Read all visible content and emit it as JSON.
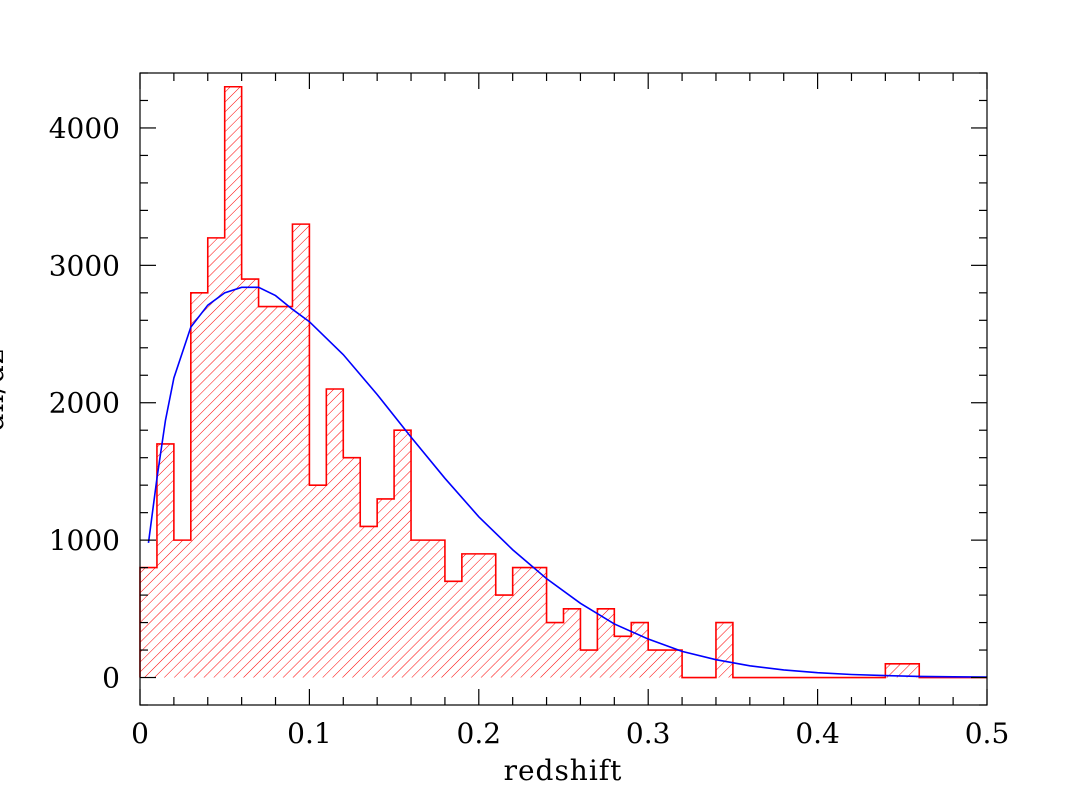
{
  "chart_data": {
    "type": "bar",
    "title": "",
    "xlabel": "redshift",
    "ylabel": "dn/dz",
    "xlim": [
      0,
      0.5
    ],
    "ylim": [
      -200,
      4400
    ],
    "x_ticks": [
      0,
      0.1,
      0.2,
      0.3,
      0.4,
      0.5
    ],
    "x_tick_labels": [
      "0",
      "0.1",
      "0.2",
      "0.3",
      "0.4",
      "0.5"
    ],
    "y_ticks": [
      0,
      1000,
      2000,
      3000,
      4000
    ],
    "y_tick_labels": [
      "0",
      "1000",
      "2000",
      "3000",
      "4000"
    ],
    "grid": false,
    "histogram": {
      "bin_width": 0.01,
      "bin_start": 0,
      "values": [
        800,
        1700,
        1000,
        2800,
        3200,
        4300,
        2900,
        2700,
        2700,
        3300,
        1400,
        2100,
        1600,
        1100,
        1300,
        1800,
        1000,
        1000,
        700,
        900,
        900,
        600,
        800,
        800,
        400,
        500,
        200,
        500,
        300,
        400,
        200,
        200,
        0,
        0,
        400,
        0,
        0,
        0,
        0,
        0,
        0,
        0,
        0,
        0,
        100,
        100,
        0,
        0,
        0,
        0
      ],
      "color": "#ff0000",
      "fill": "hatched"
    },
    "fit_curve": {
      "color": "#0000ff",
      "x": [
        0.005,
        0.01,
        0.015,
        0.02,
        0.03,
        0.04,
        0.05,
        0.06,
        0.07,
        0.08,
        0.09,
        0.1,
        0.12,
        0.14,
        0.16,
        0.18,
        0.2,
        0.22,
        0.24,
        0.26,
        0.28,
        0.3,
        0.32,
        0.34,
        0.36,
        0.38,
        0.4,
        0.42,
        0.44,
        0.46,
        0.48,
        0.5
      ],
      "y": [
        980,
        1450,
        1870,
        2180,
        2550,
        2710,
        2800,
        2840,
        2840,
        2780,
        2680,
        2590,
        2350,
        2060,
        1750,
        1450,
        1170,
        930,
        720,
        540,
        390,
        280,
        190,
        130,
        85,
        55,
        35,
        22,
        14,
        8,
        5,
        3
      ]
    }
  }
}
